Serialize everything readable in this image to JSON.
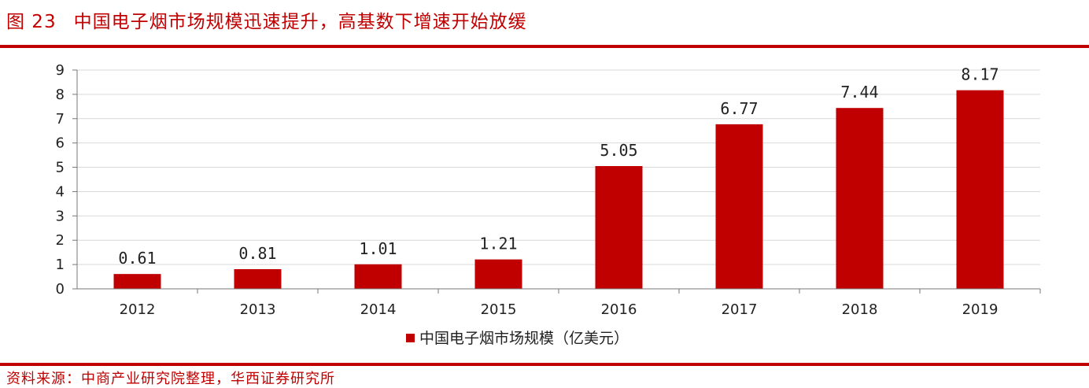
{
  "figure": {
    "number": "图 23",
    "title": "中国电子烟市场规模迅速提升，高基数下增速开始放缓"
  },
  "source": "资料来源：中商产业研究院整理，华西证券研究所",
  "colors": {
    "accent": "#c00000",
    "bar": "#c00000",
    "grid": "#d9d9d9"
  },
  "chart_data": {
    "type": "bar",
    "categories": [
      "2012",
      "2013",
      "2014",
      "2015",
      "2016",
      "2017",
      "2018",
      "2019"
    ],
    "series": [
      {
        "name": "中国电子烟市场规模（亿美元）",
        "values": [
          0.61,
          0.81,
          1.01,
          1.21,
          5.05,
          6.77,
          7.44,
          8.17
        ]
      }
    ],
    "data_labels": [
      "0.61",
      "0.81",
      "1.01",
      "1.21",
      "5.05",
      "6.77",
      "7.44",
      "8.17"
    ],
    "yticks": [
      "0",
      "1",
      "2",
      "3",
      "4",
      "5",
      "6",
      "7",
      "8",
      "9"
    ],
    "ylim": [
      0,
      9
    ],
    "grid": true,
    "legend_position": "bottom"
  }
}
